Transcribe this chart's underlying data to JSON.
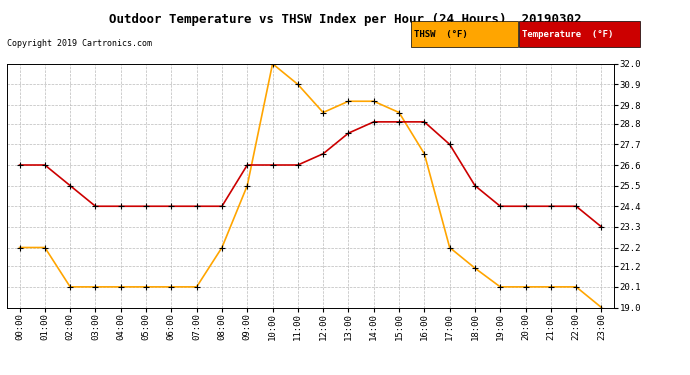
{
  "title": "Outdoor Temperature vs THSW Index per Hour (24 Hours)  20190302",
  "copyright": "Copyright 2019 Cartronics.com",
  "hours": [
    "00:00",
    "01:00",
    "02:00",
    "03:00",
    "04:00",
    "05:00",
    "06:00",
    "07:00",
    "08:00",
    "09:00",
    "10:00",
    "11:00",
    "12:00",
    "13:00",
    "14:00",
    "15:00",
    "16:00",
    "17:00",
    "18:00",
    "19:00",
    "20:00",
    "21:00",
    "22:00",
    "23:00"
  ],
  "thsw": [
    22.2,
    22.2,
    20.1,
    20.1,
    20.1,
    20.1,
    20.1,
    20.1,
    22.2,
    25.5,
    32.0,
    30.9,
    29.4,
    30.0,
    30.0,
    29.4,
    27.2,
    22.2,
    21.1,
    20.1,
    20.1,
    20.1,
    20.1,
    19.0
  ],
  "temp": [
    26.6,
    26.6,
    25.5,
    24.4,
    24.4,
    24.4,
    24.4,
    24.4,
    24.4,
    26.6,
    26.6,
    26.6,
    27.2,
    28.3,
    28.9,
    28.9,
    28.9,
    27.7,
    25.5,
    24.4,
    24.4,
    24.4,
    24.4,
    23.3
  ],
  "thsw_color": "#FFA500",
  "temp_color": "#CC0000",
  "background_color": "#ffffff",
  "grid_color": "#bbbbbb",
  "ylim_min": 19.0,
  "ylim_max": 32.0,
  "yticks": [
    19.0,
    20.1,
    21.2,
    22.2,
    23.3,
    24.4,
    25.5,
    26.6,
    27.7,
    28.8,
    29.8,
    30.9,
    32.0
  ],
  "legend_thsw_label": "THSW  (°F)",
  "legend_temp_label": "Temperature  (°F)"
}
